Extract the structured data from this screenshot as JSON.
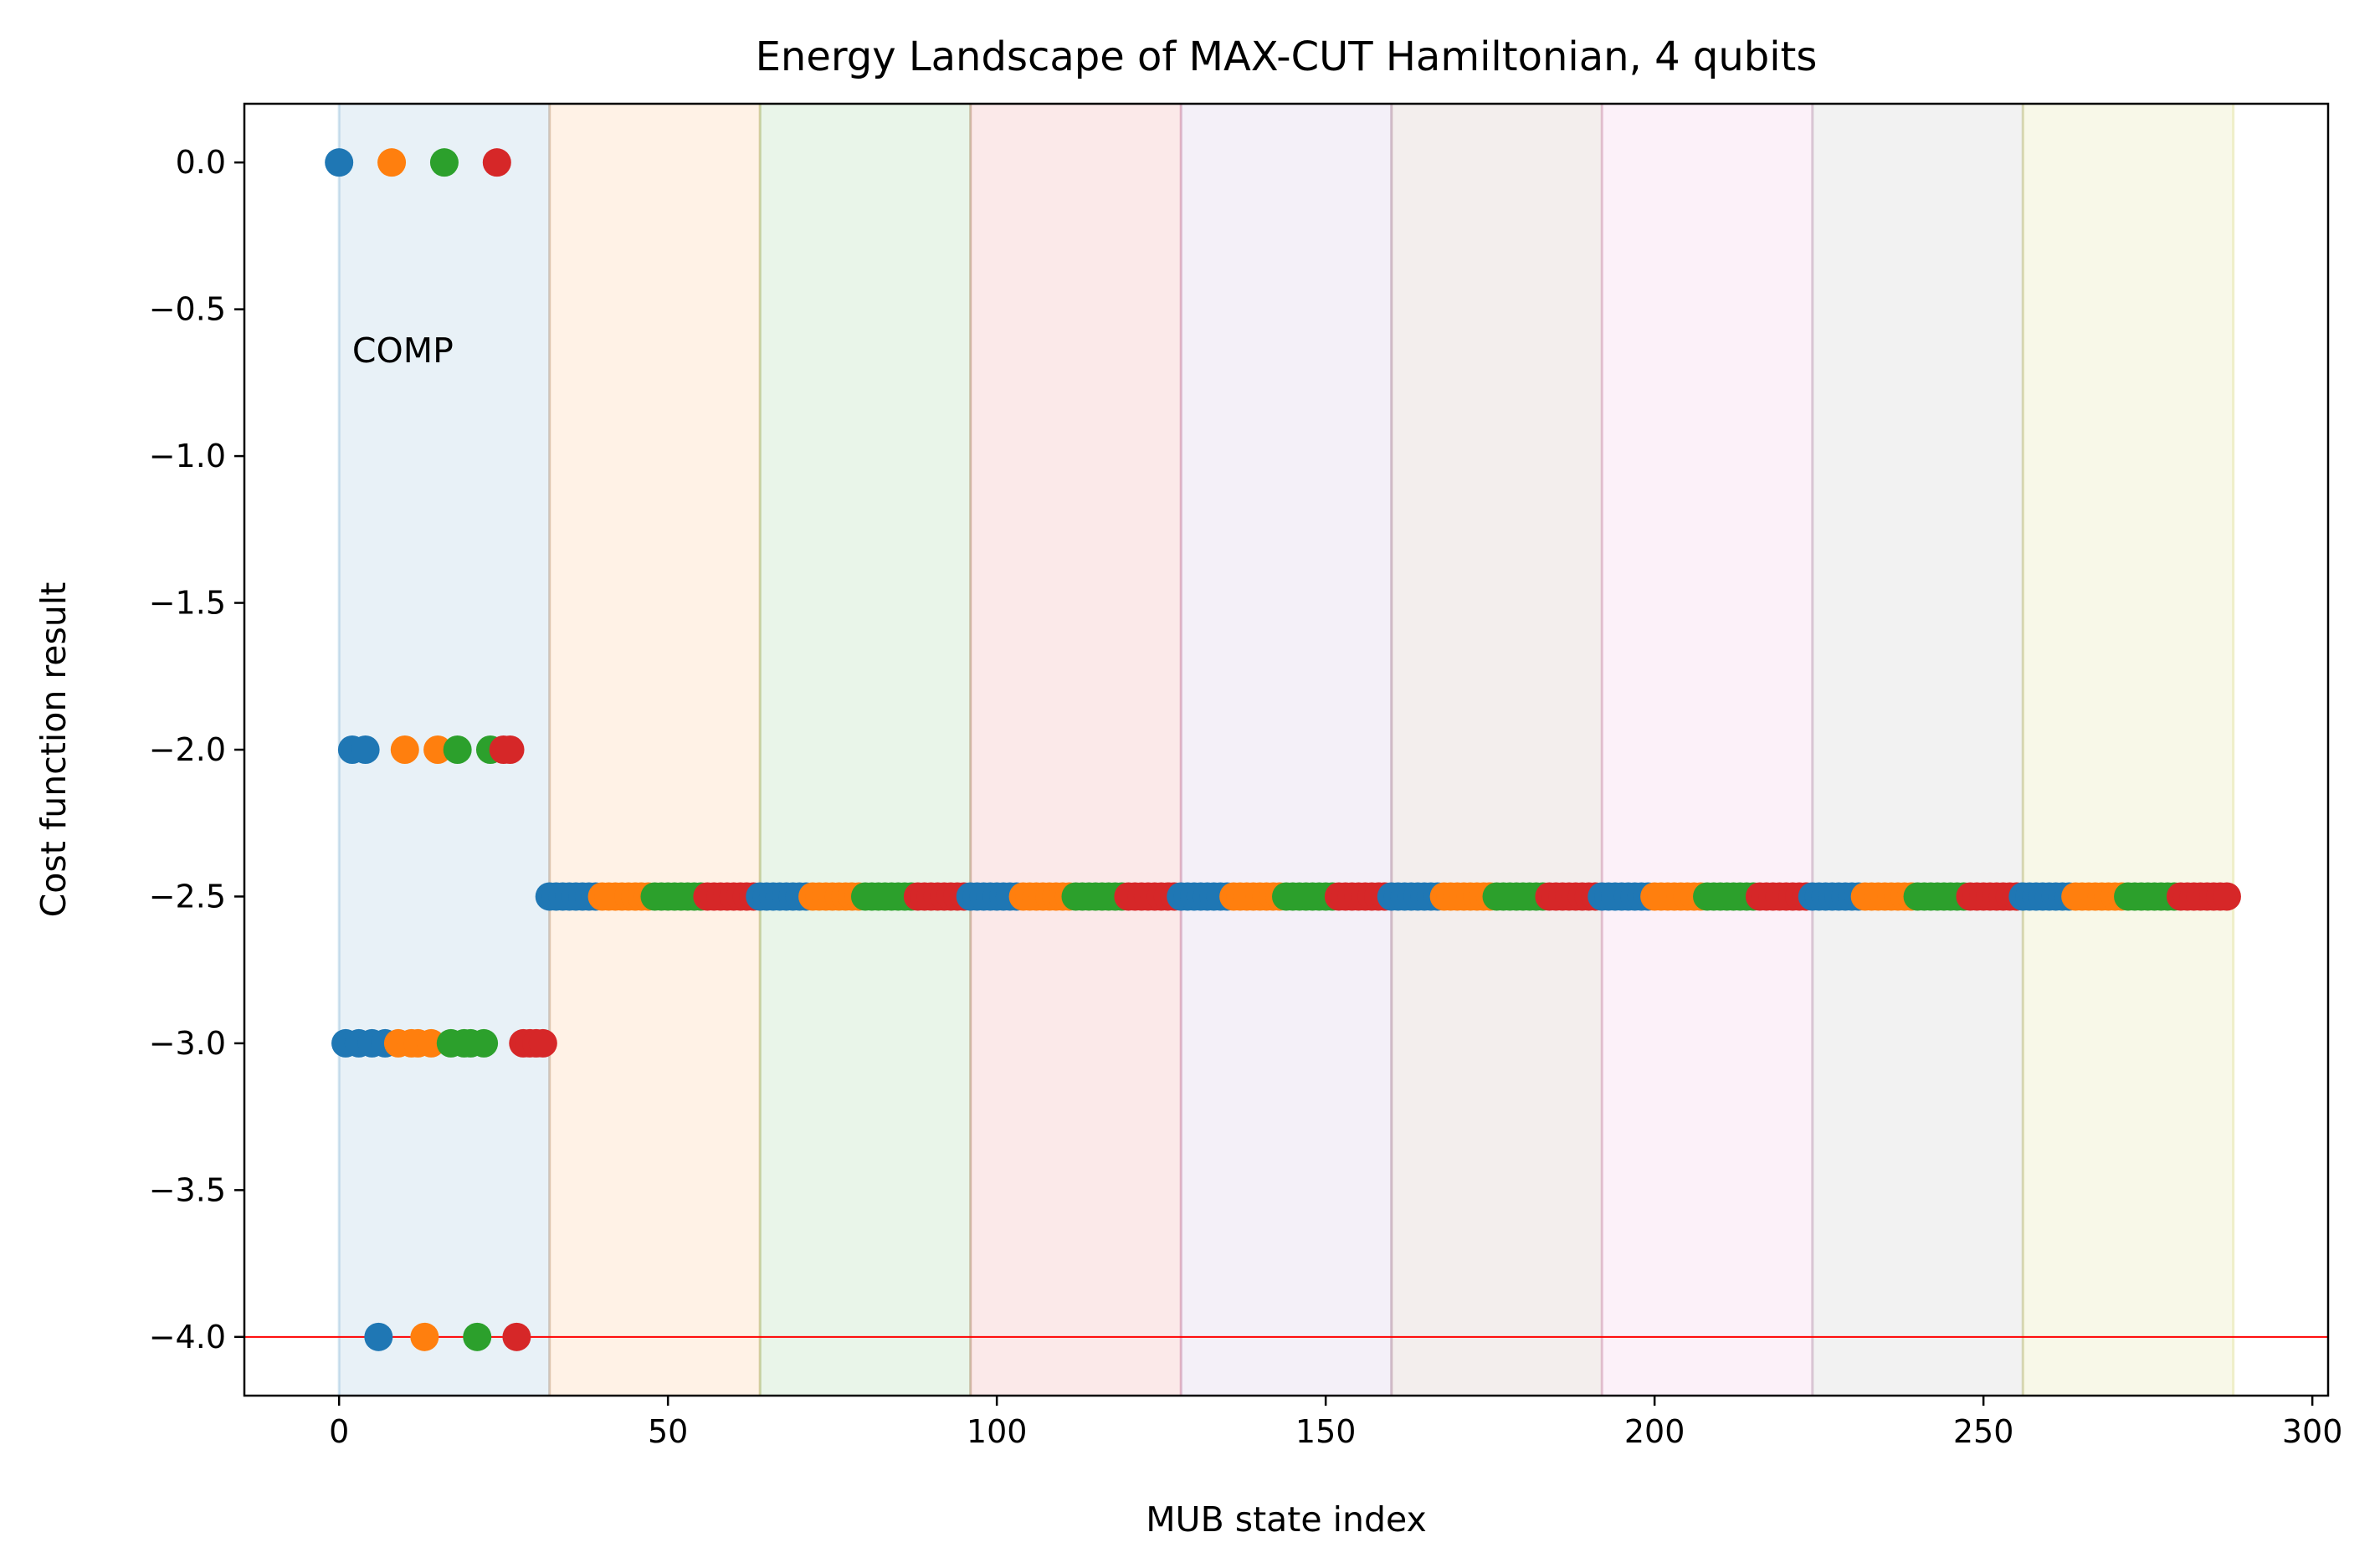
{
  "chart_data": {
    "type": "scatter",
    "title": "Energy Landscape of MAX-CUT Hamiltonian, 4 qubits",
    "xlabel": "MUB state index",
    "ylabel": "Cost function result",
    "xlim": [
      -14.4,
      302.4
    ],
    "ylim": [
      -4.2,
      0.2
    ],
    "xticks": [
      0,
      50,
      100,
      150,
      200,
      250,
      300
    ],
    "yticks": [
      0.0,
      -0.5,
      -1.0,
      -1.5,
      -2.0,
      -2.5,
      -3.0,
      -3.5,
      -4.0
    ],
    "xtick_labels": [
      "0",
      "50",
      "100",
      "150",
      "200",
      "250",
      "300"
    ],
    "ytick_labels": [
      "0.0",
      "−0.5",
      "−1.0",
      "−1.5",
      "−2.0",
      "−2.5",
      "−3.0",
      "−3.5",
      "−4.0"
    ],
    "grid": false,
    "annotation": "COMP",
    "reference_line": {
      "y": -4.0,
      "color": "#ff0000"
    },
    "bands": [
      {
        "start": 0,
        "end": 32,
        "color": "#1f77b4"
      },
      {
        "start": 32,
        "end": 64,
        "color": "#ff7f0e"
      },
      {
        "start": 64,
        "end": 96,
        "color": "#2ca02c"
      },
      {
        "start": 96,
        "end": 128,
        "color": "#d62728"
      },
      {
        "start": 128,
        "end": 160,
        "color": "#9467bd"
      },
      {
        "start": 160,
        "end": 192,
        "color": "#8c564b"
      },
      {
        "start": 192,
        "end": 224,
        "color": "#e377c2"
      },
      {
        "start": 224,
        "end": 256,
        "color": "#7f7f7f"
      },
      {
        "start": 256,
        "end": 288,
        "color": "#bcbd22"
      }
    ],
    "series_colors": [
      "#1f77b4",
      "#ff7f0e",
      "#2ca02c",
      "#d62728"
    ],
    "comp_points": [
      {
        "x": 0,
        "y": 0.0,
        "series": 0
      },
      {
        "x": 1,
        "y": -3.0,
        "series": 0
      },
      {
        "x": 2,
        "y": -2.0,
        "series": 0
      },
      {
        "x": 3,
        "y": -3.0,
        "series": 0
      },
      {
        "x": 4,
        "y": -2.0,
        "series": 0
      },
      {
        "x": 5,
        "y": -3.0,
        "series": 0
      },
      {
        "x": 6,
        "y": -4.0,
        "series": 0
      },
      {
        "x": 7,
        "y": -3.0,
        "series": 0
      },
      {
        "x": 8,
        "y": 0.0,
        "series": 1
      },
      {
        "x": 9,
        "y": -3.0,
        "series": 1
      },
      {
        "x": 10,
        "y": -2.0,
        "series": 1
      },
      {
        "x": 11,
        "y": -3.0,
        "series": 1
      },
      {
        "x": 12,
        "y": -3.0,
        "series": 1
      },
      {
        "x": 13,
        "y": -4.0,
        "series": 1
      },
      {
        "x": 14,
        "y": -3.0,
        "series": 1
      },
      {
        "x": 15,
        "y": -2.0,
        "series": 1
      },
      {
        "x": 16,
        "y": 0.0,
        "series": 2
      },
      {
        "x": 17,
        "y": -3.0,
        "series": 2
      },
      {
        "x": 18,
        "y": -2.0,
        "series": 2
      },
      {
        "x": 19,
        "y": -3.0,
        "series": 2
      },
      {
        "x": 20,
        "y": -3.0,
        "series": 2
      },
      {
        "x": 21,
        "y": -4.0,
        "series": 2
      },
      {
        "x": 22,
        "y": -3.0,
        "series": 2
      },
      {
        "x": 23,
        "y": -2.0,
        "series": 2
      },
      {
        "x": 24,
        "y": 0.0,
        "series": 3
      },
      {
        "x": 25,
        "y": -2.0,
        "series": 3
      },
      {
        "x": 26,
        "y": -2.0,
        "series": 3
      },
      {
        "x": 27,
        "y": -4.0,
        "series": 3
      },
      {
        "x": 28,
        "y": -3.0,
        "series": 3
      },
      {
        "x": 29,
        "y": -3.0,
        "series": 3
      },
      {
        "x": 30,
        "y": -3.0,
        "series": 3
      },
      {
        "x": 31,
        "y": -3.0,
        "series": 3
      }
    ],
    "flat_run": {
      "x_start": 32,
      "x_end": 287,
      "y": -2.5,
      "group_size": 8
    }
  }
}
